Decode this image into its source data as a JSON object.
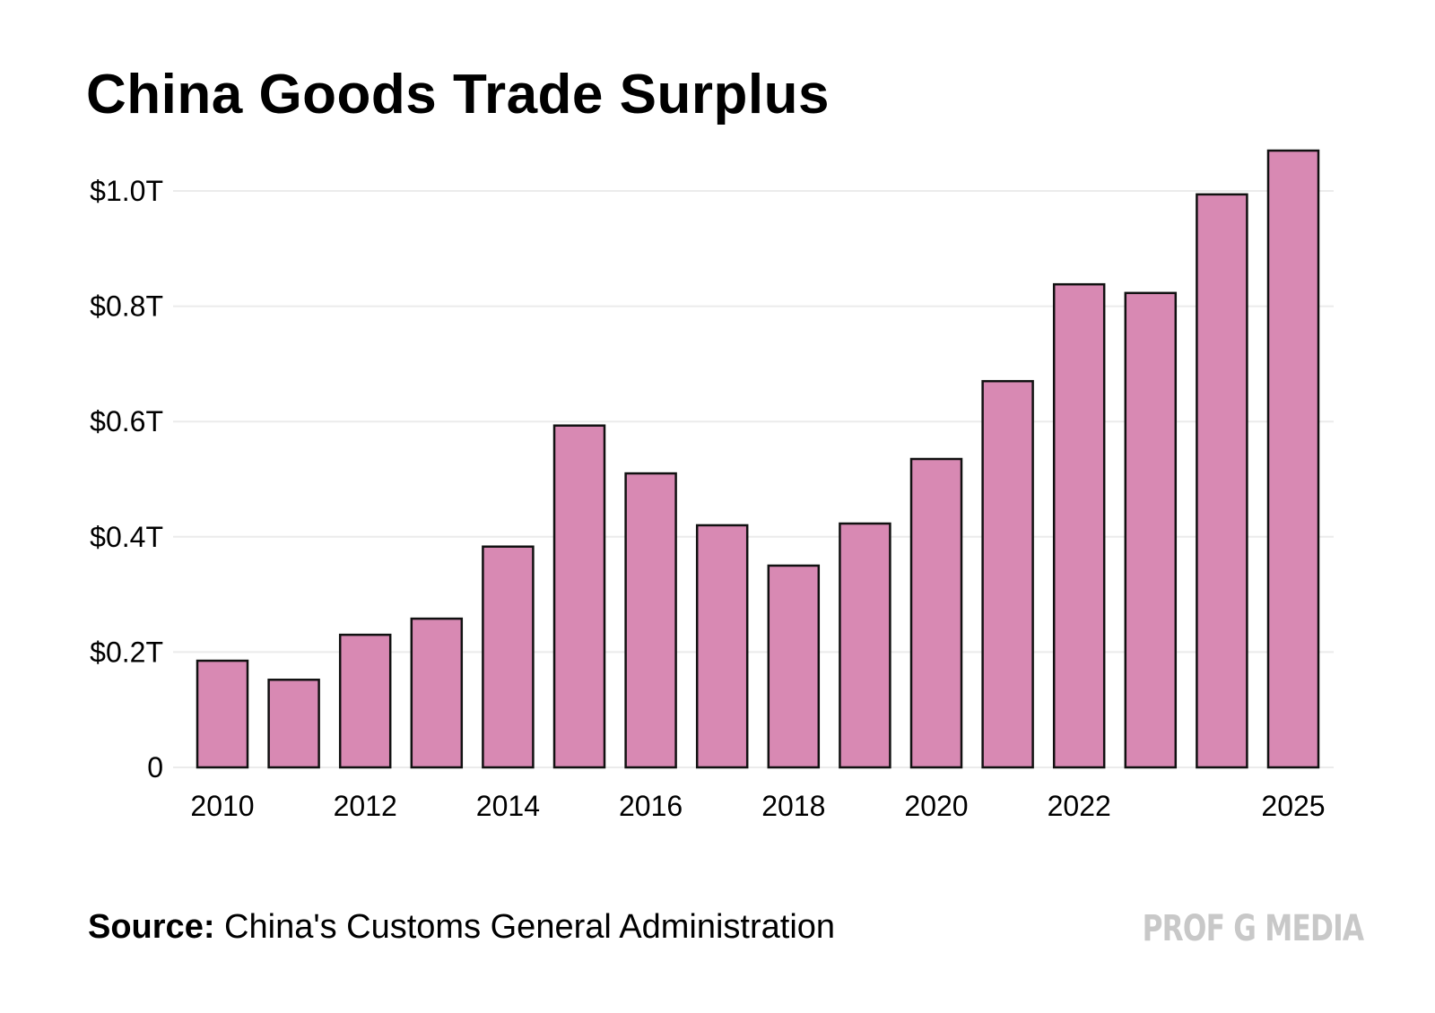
{
  "title": "China Goods Trade Surplus",
  "source_label": "Source:",
  "source_text": "China's Customs General Administration",
  "brand": "PROF G MEDIA",
  "colors": {
    "bar_fill": "#D889B3",
    "bar_stroke": "#111111",
    "grid": "#EBEBEB",
    "brand": "#C8C8C8"
  },
  "chart_data": {
    "type": "bar",
    "title": "China Goods Trade Surplus",
    "xlabel": "",
    "ylabel": "",
    "categories": [
      "2010",
      "2011",
      "2012",
      "2013",
      "2014",
      "2015",
      "2016",
      "2017",
      "2018",
      "2019",
      "2020",
      "2021",
      "2022",
      "2023",
      "2024",
      "2025"
    ],
    "values": [
      0.185,
      0.152,
      0.23,
      0.258,
      0.383,
      0.593,
      0.51,
      0.42,
      0.35,
      0.423,
      0.535,
      0.67,
      0.838,
      0.823,
      0.994,
      1.07
    ],
    "units": "trillion USD",
    "ylim": [
      0,
      1.0
    ],
    "yticks": [
      0,
      0.2,
      0.4,
      0.6,
      0.8,
      1.0
    ],
    "ytick_labels": [
      "0",
      "$0.2T",
      "$0.4T",
      "$0.6T",
      "$0.8T",
      "$1.0T"
    ],
    "xtick_labels": [
      "2010",
      "2012",
      "2014",
      "2016",
      "2018",
      "2020",
      "2022",
      "2025"
    ],
    "grid": true,
    "legend": "none"
  }
}
